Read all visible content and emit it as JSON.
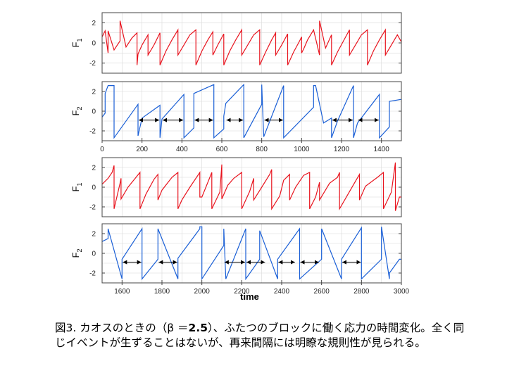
{
  "caption": {
    "line1_prefix": "図3. カオスのときの（β ＝",
    "beta_value": "2.5",
    "line1_suffix": "）、ふたつのブロックに働く応力の時間変化。全く同",
    "line2": "じイベントが生ずることはないが、再来間隔には明瞭な規則性が見られる。"
  },
  "colors": {
    "F1": "#e8141e",
    "F2": "#1a5fd6",
    "grid": "#d8d8d8",
    "frame": "#444444",
    "arrow": "#000000"
  },
  "chart_data": [
    {
      "type": "line",
      "ylabel": "F1",
      "series_color": "#e8141e",
      "xlim": [
        0,
        1500
      ],
      "ylim": [
        -3,
        3
      ],
      "yticks": [
        -2,
        0,
        2
      ],
      "xticks": [],
      "show_xtick_labels": false,
      "grid": true,
      "x": [
        0,
        15,
        30,
        30,
        60,
        90,
        90,
        120,
        150,
        175,
        175,
        180,
        200,
        230,
        230,
        260,
        290,
        290,
        320,
        350,
        380,
        380,
        410,
        440,
        470,
        470,
        500,
        530,
        555,
        555,
        580,
        610,
        610,
        640,
        670,
        700,
        700,
        730,
        760,
        790,
        790,
        820,
        850,
        870,
        870,
        900,
        930,
        930,
        960,
        990,
        1000,
        1000,
        1010,
        1030,
        1060,
        1090,
        1090,
        1120,
        1150,
        1150,
        1180,
        1210,
        1240,
        1240,
        1270,
        1300,
        1330,
        1330,
        1360,
        1390,
        1420,
        1420,
        1450,
        1480,
        1500
      ],
      "y": [
        0.6,
        1.2,
        -1.0,
        1.2,
        -0.7,
        0.2,
        2.2,
        -0.4,
        0.5,
        1.0,
        -2.2,
        -1.1,
        -0.2,
        0.8,
        -1.2,
        -0.2,
        1.0,
        -2.2,
        -0.8,
        0.3,
        1.3,
        -1.2,
        -0.2,
        0.8,
        1.3,
        -2.2,
        -0.8,
        0.3,
        1.1,
        -1.2,
        -0.2,
        0.9,
        -2.2,
        -0.8,
        0.3,
        1.3,
        -1.2,
        -0.2,
        0.8,
        1.3,
        -2.2,
        -0.9,
        0.3,
        1.0,
        -1.2,
        -0.2,
        0.9,
        -2.2,
        -0.9,
        0.2,
        0.6,
        -1.0,
        -0.6,
        0.3,
        1.3,
        -1.2,
        2.2,
        -0.5,
        0.8,
        -2.2,
        -0.9,
        0.2,
        1.3,
        -1.2,
        -0.2,
        0.8,
        1.3,
        -2.2,
        -0.8,
        0.3,
        1.3,
        -1.2,
        -0.2,
        0.8,
        0.1
      ]
    },
    {
      "type": "line",
      "ylabel": "F2",
      "series_color": "#1a5fd6",
      "xlim": [
        0,
        1500
      ],
      "ylim": [
        -3,
        3
      ],
      "yticks": [
        -2,
        0,
        2
      ],
      "xticks": [
        0,
        200,
        400,
        600,
        800,
        1000,
        1200,
        1400
      ],
      "show_xtick_labels": true,
      "grid": true,
      "x": [
        0,
        15,
        15,
        30,
        60,
        60,
        180,
        180,
        200,
        290,
        290,
        300,
        410,
        410,
        460,
        460,
        560,
        560,
        610,
        610,
        620,
        710,
        710,
        800,
        800,
        810,
        910,
        910,
        1060,
        1060,
        1070,
        1110,
        1150,
        1150,
        1180,
        1260,
        1260,
        1280,
        1390,
        1390,
        1440,
        1440,
        1500
      ],
      "y": [
        -0.6,
        -0.2,
        1.8,
        2.6,
        2.6,
        -2.7,
        0.7,
        -2.5,
        -0.7,
        0.6,
        -2.7,
        -0.8,
        1.7,
        -2.7,
        -1.7,
        1.8,
        2.7,
        -2.7,
        -1.8,
        -0.5,
        0.8,
        2.7,
        -2.7,
        0.7,
        2.7,
        -2.6,
        2.6,
        -2.7,
        0.4,
        2.6,
        2.6,
        -1.2,
        -0.7,
        -2.7,
        -1.0,
        2.6,
        -2.7,
        -1.2,
        1.7,
        -2.7,
        -1.6,
        1.0,
        1.2
      ],
      "interval_arrows": [
        [
          180,
          290
        ],
        [
          300,
          410
        ],
        [
          460,
          560
        ],
        [
          620,
          710
        ],
        [
          810,
          910
        ],
        [
          1150,
          1260
        ],
        [
          1280,
          1390
        ]
      ]
    },
    {
      "type": "line",
      "ylabel": "F1",
      "series_color": "#e8141e",
      "xlim": [
        1500,
        3000
      ],
      "ylim": [
        -3,
        3
      ],
      "yticks": [
        -2,
        0,
        2
      ],
      "xticks": [],
      "show_xtick_labels": false,
      "grid": true,
      "x": [
        1500,
        1530,
        1550,
        1560,
        1560,
        1590,
        1595,
        1595,
        1630,
        1690,
        1690,
        1720,
        1760,
        1780,
        1780,
        1800,
        1850,
        1880,
        1880,
        1900,
        1940,
        1990,
        1990,
        2000,
        2030,
        2050,
        2050,
        2090,
        2100,
        2100,
        2130,
        2160,
        2200,
        2200,
        2240,
        2260,
        2260,
        2300,
        2340,
        2350,
        2350,
        2390,
        2410,
        2440,
        2440,
        2470,
        2510,
        2540,
        2540,
        2570,
        2590,
        2590,
        2640,
        2680,
        2690,
        2690,
        2730,
        2770,
        2790,
        2790,
        2820,
        2880,
        2910,
        2910,
        2950,
        2970,
        2970,
        2990,
        3000
      ],
      "y": [
        0.3,
        0.9,
        1.5,
        2.2,
        -2.2,
        0.4,
        0.9,
        -1.2,
        0.0,
        1.5,
        -2.2,
        -0.7,
        0.8,
        1.3,
        -1.3,
        -0.3,
        1.0,
        1.5,
        -2.2,
        -1.3,
        0.0,
        1.5,
        -1.0,
        -1.0,
        0.5,
        1.5,
        -2.2,
        -0.5,
        2.3,
        -1.2,
        0.2,
        0.9,
        1.5,
        -2.2,
        -0.4,
        0.9,
        -1.3,
        0.0,
        1.3,
        1.8,
        -2.2,
        -0.9,
        0.7,
        1.3,
        -1.3,
        0.0,
        1.2,
        1.5,
        -2.2,
        -1.0,
        0.5,
        -1.3,
        0.4,
        1.0,
        1.5,
        -2.2,
        -0.8,
        0.6,
        1.3,
        -1.3,
        0.1,
        1.0,
        1.5,
        -2.2,
        -0.5,
        2.5,
        -2.4,
        -1.0,
        -1.0
      ]
    },
    {
      "type": "line",
      "ylabel": "F2",
      "series_color": "#1a5fd6",
      "xlabel": "time",
      "xlim": [
        1500,
        3000
      ],
      "ylim": [
        -3,
        3
      ],
      "yticks": [
        -2,
        0,
        2
      ],
      "xticks": [
        1600,
        1800,
        2000,
        2200,
        2400,
        2600,
        2800,
        3000
      ],
      "show_xtick_labels": true,
      "grid": true,
      "x": [
        1500,
        1530,
        1530,
        1600,
        1600,
        1700,
        1700,
        1780,
        1780,
        1880,
        1880,
        1990,
        1990,
        2000,
        2000,
        2110,
        2110,
        2120,
        2220,
        2220,
        2290,
        2290,
        2380,
        2380,
        2490,
        2490,
        2600,
        2600,
        2700,
        2700,
        2800,
        2800,
        2900,
        2900,
        2940,
        2940,
        2990,
        3000
      ],
      "y": [
        1.2,
        1.5,
        2.5,
        -2.6,
        -0.6,
        2.5,
        -2.6,
        -0.6,
        2.5,
        -2.6,
        -0.5,
        2.5,
        2.7,
        2.7,
        -2.6,
        0.8,
        2.5,
        -2.6,
        2.5,
        -2.6,
        -0.6,
        2.3,
        -2.6,
        -0.6,
        2.5,
        -2.6,
        -0.6,
        2.5,
        -2.6,
        -0.6,
        2.6,
        -2.6,
        -0.6,
        2.7,
        -2.6,
        -2.0,
        -0.6,
        -0.6
      ],
      "interval_arrows": [
        [
          1600,
          1700
        ],
        [
          1780,
          1880
        ],
        [
          2110,
          2220
        ],
        [
          2220,
          2320
        ],
        [
          2380,
          2470
        ],
        [
          2490,
          2590
        ],
        [
          2700,
          2800
        ]
      ]
    }
  ]
}
